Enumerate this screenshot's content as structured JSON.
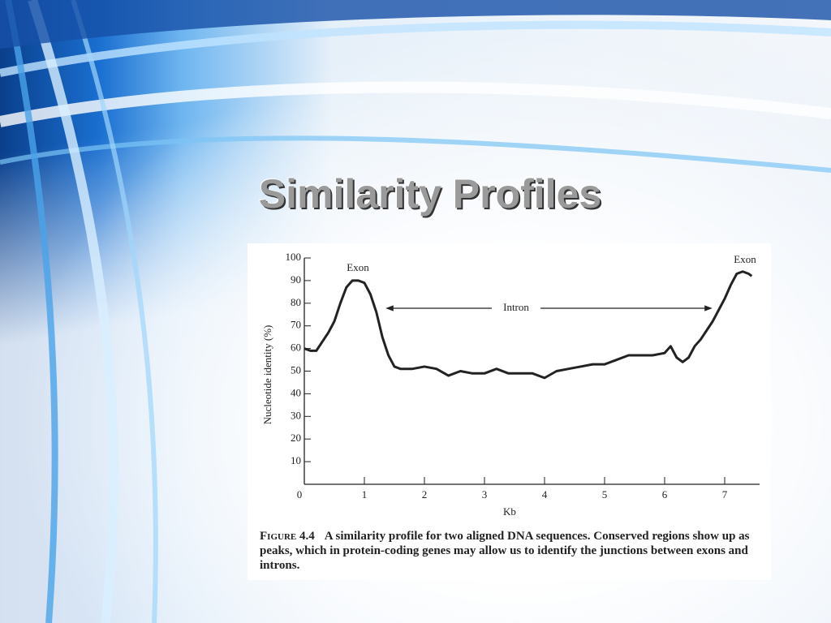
{
  "slide_title": "Similarity Profiles",
  "chart_data": {
    "type": "line",
    "xlabel": "Kb",
    "ylabel": "Nucleotide identity (%)",
    "xlim": [
      0,
      7.5
    ],
    "ylim": [
      0,
      100
    ],
    "xticks": [
      0,
      1,
      2,
      3,
      4,
      5,
      6,
      7
    ],
    "yticks": [
      10,
      20,
      30,
      40,
      50,
      60,
      70,
      80,
      90,
      100
    ],
    "color": "#222222",
    "annotations": [
      "Exon",
      "Exon",
      "Intron"
    ],
    "x": [
      0,
      0.1,
      0.2,
      0.3,
      0.4,
      0.5,
      0.6,
      0.7,
      0.8,
      0.9,
      1.0,
      1.1,
      1.2,
      1.3,
      1.4,
      1.5,
      1.6,
      1.8,
      2.0,
      2.2,
      2.4,
      2.6,
      2.8,
      3.0,
      3.2,
      3.4,
      3.6,
      3.8,
      4.0,
      4.2,
      4.4,
      4.6,
      4.8,
      5.0,
      5.2,
      5.4,
      5.6,
      5.8,
      6.0,
      6.1,
      6.2,
      6.3,
      6.4,
      6.5,
      6.6,
      6.8,
      7.0,
      7.1,
      7.2,
      7.3,
      7.4,
      7.45
    ],
    "values": [
      60,
      59,
      59,
      63,
      67,
      72,
      80,
      87,
      90,
      90,
      89,
      84,
      76,
      65,
      57,
      52,
      51,
      51,
      52,
      51,
      48,
      50,
      49,
      49,
      51,
      49,
      49,
      49,
      47,
      50,
      51,
      52,
      53,
      53,
      55,
      57,
      57,
      57,
      58,
      61,
      56,
      54,
      56,
      61,
      64,
      72,
      82,
      88,
      93,
      94,
      93,
      92
    ]
  },
  "caption": {
    "label": "Figure 4.4",
    "text": "A similarity profile for two aligned DNA sequences. Conserved regions show up as peaks, which in protein-coding genes may allow us to identify the junctions between exons and introns."
  }
}
